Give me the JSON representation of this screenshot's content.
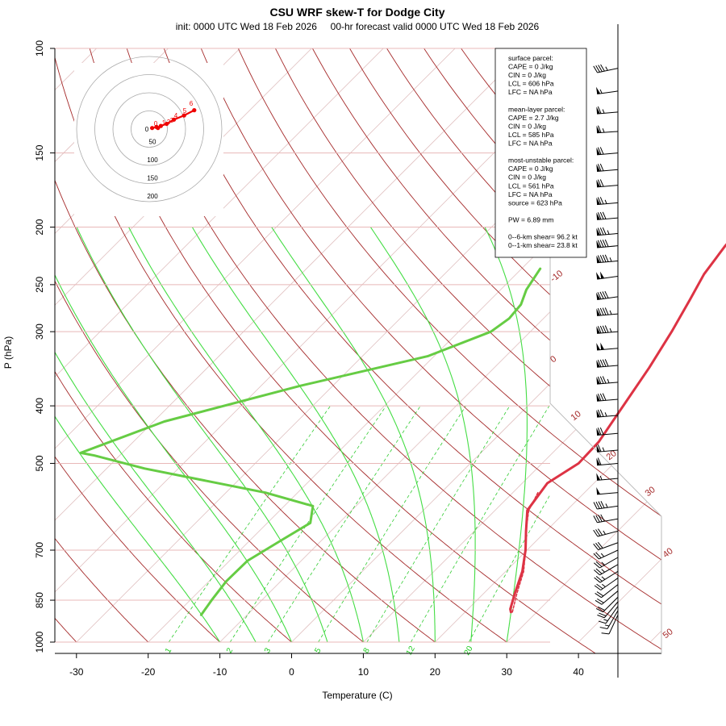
{
  "chart_data": {
    "type": "line",
    "title": "CSU WRF skew-T for Dodge City",
    "subtitle": "init: 0000 UTC Wed 18 Feb 2026     00-hr forecast valid 0000 UTC Wed 18 Feb 2026",
    "xlabel": "Temperature (C)",
    "ylabel": "P (hPa)",
    "xlim": [
      -33,
      45
    ],
    "ylim": [
      1000,
      100
    ],
    "x_ticks": [
      "-30",
      "-20",
      "-10",
      "0",
      "10",
      "20",
      "30",
      "40"
    ],
    "y_ticks": [
      "100",
      "150",
      "200",
      "250",
      "300",
      "400",
      "500",
      "700",
      "850",
      "1000"
    ],
    "isotherm_labels": [
      "-10",
      "0",
      "10",
      "20",
      "30",
      "40",
      "50"
    ],
    "mixing_ratio_labels": [
      "1",
      "2",
      "3",
      "5",
      "8",
      "12",
      "20"
    ],
    "series": [
      {
        "name": "Temperature",
        "color": "#dd3344",
        "points": [
          [
            17.5,
            108
          ],
          [
            13.0,
            125
          ],
          [
            8.8,
            143
          ],
          [
            7.2,
            155
          ],
          [
            6.0,
            168
          ],
          [
            5.2,
            180
          ],
          [
            4.8,
            195
          ],
          [
            5.2,
            215
          ],
          [
            6.2,
            240
          ],
          [
            7.8,
            265
          ],
          [
            9.7,
            300
          ],
          [
            11.6,
            345
          ],
          [
            13.3,
            400
          ],
          [
            14.9,
            460
          ],
          [
            15.1,
            500
          ],
          [
            13.5,
            540
          ],
          [
            14.5,
            600
          ],
          [
            17.2,
            650
          ],
          [
            19.8,
            700
          ],
          [
            22.3,
            760
          ],
          [
            24.4,
            830
          ],
          [
            25.9,
            880
          ],
          [
            26.4,
            890
          ]
        ]
      },
      {
        "name": "Dewpoint",
        "color": "#66cc44",
        "points": [
          [
            -17.4,
            235
          ],
          [
            -16.4,
            255
          ],
          [
            -15.1,
            270
          ],
          [
            -14.8,
            285
          ],
          [
            -15.5,
            300
          ],
          [
            -20.9,
            330
          ],
          [
            -34.5,
            370
          ],
          [
            -48.5,
            425
          ],
          [
            -55.8,
            480
          ],
          [
            -53.5,
            485
          ],
          [
            -44.7,
            510
          ],
          [
            -24.5,
            560
          ],
          [
            -16.0,
            590
          ],
          [
            -14.0,
            630
          ],
          [
            -15.5,
            670
          ],
          [
            -17.5,
            730
          ],
          [
            -17.6,
            790
          ],
          [
            -17.0,
            850
          ],
          [
            -16.4,
            900
          ]
        ]
      },
      {
        "name": "Parcel",
        "color": "#dd3344",
        "points": [
          [
            13.5,
            560
          ],
          [
            14.7,
            600
          ],
          [
            17.2,
            650
          ],
          [
            19.8,
            700
          ],
          [
            22.5,
            760
          ],
          [
            24.7,
            830
          ],
          [
            26.6,
            890
          ]
        ]
      }
    ],
    "wind_barbs": [
      {
        "p": 108,
        "ws": 45,
        "wd": 258
      },
      {
        "p": 118,
        "ws": 55,
        "wd": 262
      },
      {
        "p": 128,
        "ws": 65,
        "wd": 265
      },
      {
        "p": 138,
        "ws": 65,
        "wd": 266
      },
      {
        "p": 150,
        "ws": 70,
        "wd": 265
      },
      {
        "p": 160,
        "ws": 70,
        "wd": 265
      },
      {
        "p": 170,
        "ws": 70,
        "wd": 265
      },
      {
        "p": 182,
        "ws": 75,
        "wd": 265
      },
      {
        "p": 193,
        "ws": 80,
        "wd": 265
      },
      {
        "p": 205,
        "ws": 85,
        "wd": 265
      },
      {
        "p": 215,
        "ws": 90,
        "wd": 265
      },
      {
        "p": 228,
        "ws": 95,
        "wd": 265
      },
      {
        "p": 242,
        "ws": 100,
        "wd": 262
      },
      {
        "p": 262,
        "ws": 90,
        "wd": 262
      },
      {
        "p": 280,
        "ws": 95,
        "wd": 265
      },
      {
        "p": 300,
        "ws": 95,
        "wd": 265
      },
      {
        "p": 320,
        "ws": 100,
        "wd": 265
      },
      {
        "p": 342,
        "ws": 90,
        "wd": 265
      },
      {
        "p": 365,
        "ws": 85,
        "wd": 265
      },
      {
        "p": 390,
        "ws": 80,
        "wd": 265
      },
      {
        "p": 415,
        "ws": 75,
        "wd": 265
      },
      {
        "p": 445,
        "ws": 70,
        "wd": 265
      },
      {
        "p": 475,
        "ws": 65,
        "wd": 265
      },
      {
        "p": 500,
        "ws": 60,
        "wd": 265
      },
      {
        "p": 530,
        "ws": 55,
        "wd": 265
      },
      {
        "p": 560,
        "ws": 50,
        "wd": 265
      },
      {
        "p": 590,
        "ws": 45,
        "wd": 262
      },
      {
        "p": 620,
        "ws": 40,
        "wd": 260
      },
      {
        "p": 650,
        "ws": 35,
        "wd": 255
      },
      {
        "p": 680,
        "ws": 30,
        "wd": 250
      },
      {
        "p": 700,
        "ws": 25,
        "wd": 245
      },
      {
        "p": 720,
        "ws": 25,
        "wd": 240
      },
      {
        "p": 740,
        "ws": 25,
        "wd": 240
      },
      {
        "p": 760,
        "ws": 25,
        "wd": 238
      },
      {
        "p": 780,
        "ws": 25,
        "wd": 235
      },
      {
        "p": 800,
        "ws": 20,
        "wd": 232
      },
      {
        "p": 820,
        "ws": 20,
        "wd": 230
      },
      {
        "p": 840,
        "ws": 20,
        "wd": 225
      },
      {
        "p": 855,
        "ws": 20,
        "wd": 220
      },
      {
        "p": 870,
        "ws": 15,
        "wd": 215
      },
      {
        "p": 885,
        "ws": 15,
        "wd": 210
      },
      {
        "p": 900,
        "ws": 10,
        "wd": 205
      }
    ],
    "hodograph": {
      "ring_labels": [
        "50",
        "100",
        "150",
        "200"
      ],
      "height_labels": [
        "0",
        "1",
        "2",
        "3",
        "4",
        "5",
        "6"
      ],
      "points": [
        [
          2,
          1
        ],
        [
          5,
          2
        ],
        [
          6,
          1
        ],
        [
          8,
          3
        ],
        [
          12,
          5
        ],
        [
          17,
          9
        ],
        [
          24,
          13
        ],
        [
          31,
          18
        ]
      ]
    }
  },
  "info": {
    "lines": [
      "surface parcel:",
      "CAPE = 0 J/kg",
      "CIN = 0 J/kg",
      "LCL = 606 hPa",
      "LFC = NA hPa",
      "",
      "mean-layer parcel:",
      "CAPE = 2.7 J/kg",
      "CIN = 0 J/kg",
      "LCL = 585 hPa",
      "LFC = NA hPa",
      "",
      "most-unstable parcel:",
      "CAPE = 0 J/kg",
      "CIN = 0 J/kg",
      "LCL = 561 hPa",
      "LFC = NA hPa",
      "source = 623 hPa",
      "",
      "PW =  6.89 mm",
      "",
      "0--6-km shear= 96.2 kt",
      "0--1-km shear= 23.8 kt"
    ]
  }
}
